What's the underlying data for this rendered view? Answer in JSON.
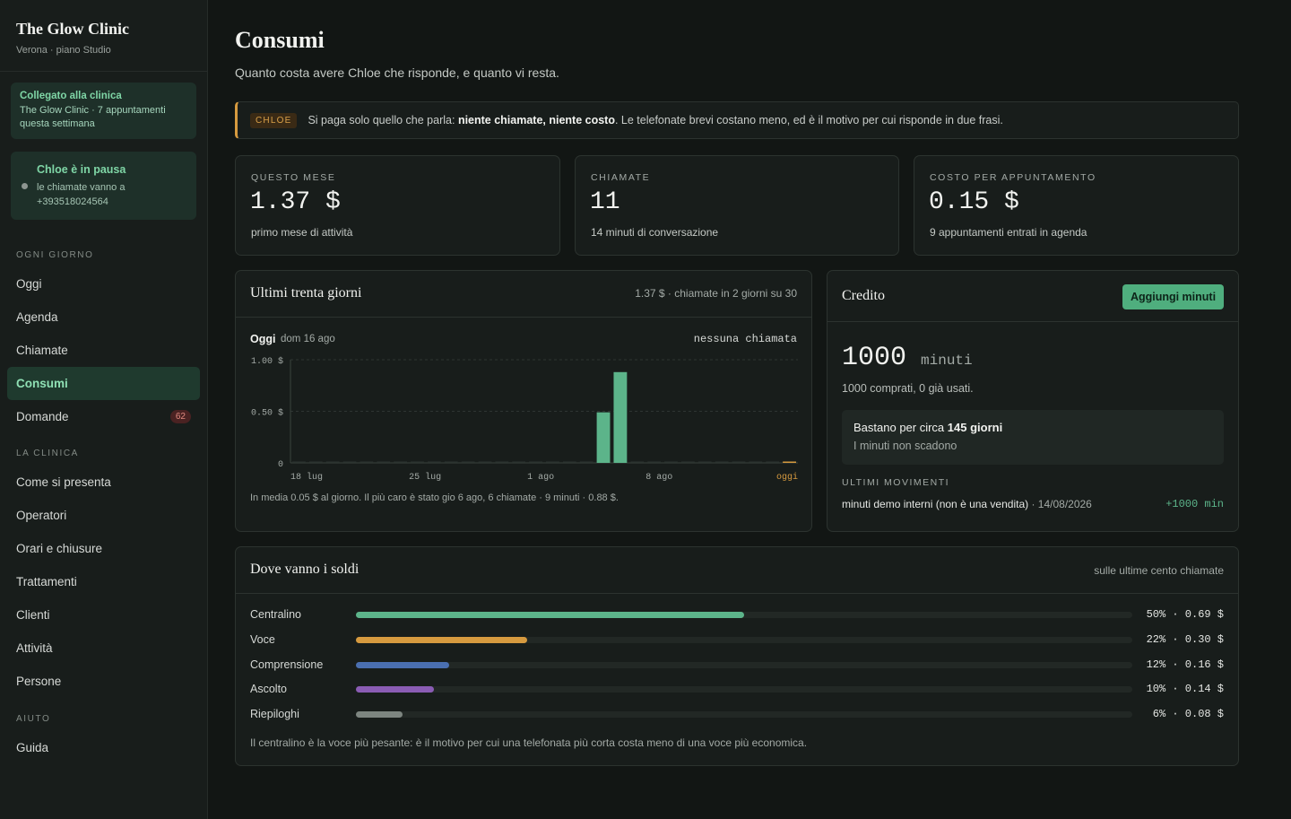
{
  "sidebar": {
    "brand_title": "The Glow Clinic",
    "brand_sub": "Verona · piano Studio",
    "connected": {
      "title": "Collegato alla clinica",
      "text": "The Glow Clinic · 7 appuntamenti questa settimana"
    },
    "pause": {
      "title": "Chloe è in pausa",
      "text": "le chiamate vanno a +393518024564"
    },
    "sections": [
      {
        "label": "OGNI GIORNO",
        "items": [
          "Oggi",
          "Agenda",
          "Chiamate",
          "Consumi",
          "Domande"
        ]
      },
      {
        "label": "LA CLINICA",
        "items": [
          "Come si presenta",
          "Operatori",
          "Orari e chiusure",
          "Trattamenti",
          "Clienti",
          "Attività",
          "Persone"
        ]
      },
      {
        "label": "AIUTO",
        "items": [
          "Guida"
        ]
      }
    ],
    "active_item": "Consumi",
    "domande_badge": "62"
  },
  "page": {
    "title": "Consumi",
    "subtitle": "Quanto costa avere Chloe che risponde, e quanto vi resta."
  },
  "notice": {
    "chip": "CHLOE",
    "text_before": "Si paga solo quello che parla: ",
    "text_bold": "niente chiamate, niente costo",
    "text_after": ". Le telefonate brevi costano meno, ed è il motivo per cui risponde in due frasi.",
    "accent_color": "#d69a3f"
  },
  "stats": [
    {
      "label": "QUESTO MESE",
      "value": "1.37 $",
      "sub": "primo mese di attività"
    },
    {
      "label": "CHIAMATE",
      "value": "11",
      "sub": "14 minuti di conversazione"
    },
    {
      "label": "COSTO PER APPUNTAMENTO",
      "value": "0.15 $",
      "sub": "9 appuntamenti entrati in agenda"
    }
  ],
  "last30": {
    "title": "Ultimi trenta giorni",
    "note": "1.37 $ · chiamate in 2 giorni su 30",
    "day_label": "Oggi",
    "day_date": "dom 16 ago",
    "day_status": "nessuna chiamata",
    "footer": "In media 0.05 $ al giorno. Il più caro è stato gio 6 ago, 6 chiamate · 9 minuti · 0.88 $."
  },
  "chart_data": {
    "type": "bar",
    "title": "Ultimi trenta giorni",
    "ylim": [
      0,
      1.0
    ],
    "y_ticks": [
      "1.00 $",
      "0.50 $",
      "0"
    ],
    "x_tick_labels": [
      "18 lug",
      "25 lug",
      "1 ago",
      "8 ago",
      "oggi"
    ],
    "x_tick_days": [
      0,
      7,
      14,
      21,
      29
    ],
    "days": 30,
    "values": [
      0,
      0,
      0,
      0,
      0,
      0,
      0,
      0,
      0,
      0,
      0,
      0,
      0,
      0,
      0,
      0,
      0,
      0,
      0.49,
      0.88,
      0,
      0,
      0,
      0,
      0,
      0,
      0,
      0,
      0,
      0
    ],
    "bar_color": "#5cb48a",
    "today_color": "#d69a3f",
    "grid": true
  },
  "credit": {
    "title": "Credito",
    "button": "Aggiungi minuti",
    "minutes": "1000",
    "unit": "minuti",
    "sub": "1000 comprati, 0 già usati.",
    "estimate_before": "Bastano per circa ",
    "estimate_bold": "145 giorni",
    "estimate_note": "I minuti non scadono",
    "movements_label": "ULTIMI MOVIMENTI",
    "movement_text": "minuti demo interni (non è una vendita)",
    "movement_date": "· 14/08/2026",
    "movement_amount": "+1000 min"
  },
  "breakdown": {
    "title": "Dove vanno i soldi",
    "note": "sulle ultime cento chiamate",
    "rows": [
      {
        "label": "Centralino",
        "pct": 50,
        "value": "50% · 0.69 $",
        "color": "#5cb48a"
      },
      {
        "label": "Voce",
        "pct": 22,
        "value": "22% · 0.30 $",
        "color": "#d69a3f"
      },
      {
        "label": "Comprensione",
        "pct": 12,
        "value": "12% · 0.16 $",
        "color": "#4a6fb0"
      },
      {
        "label": "Ascolto",
        "pct": 10,
        "value": "10% · 0.14 $",
        "color": "#8a5cb4"
      },
      {
        "label": "Riepiloghi",
        "pct": 6,
        "value": "6% · 0.08 $",
        "color": "#7d8580"
      }
    ],
    "footer": "Il centralino è la voce più pesante: è il motivo per cui una telefonata più corta costa meno di una voce più economica."
  }
}
